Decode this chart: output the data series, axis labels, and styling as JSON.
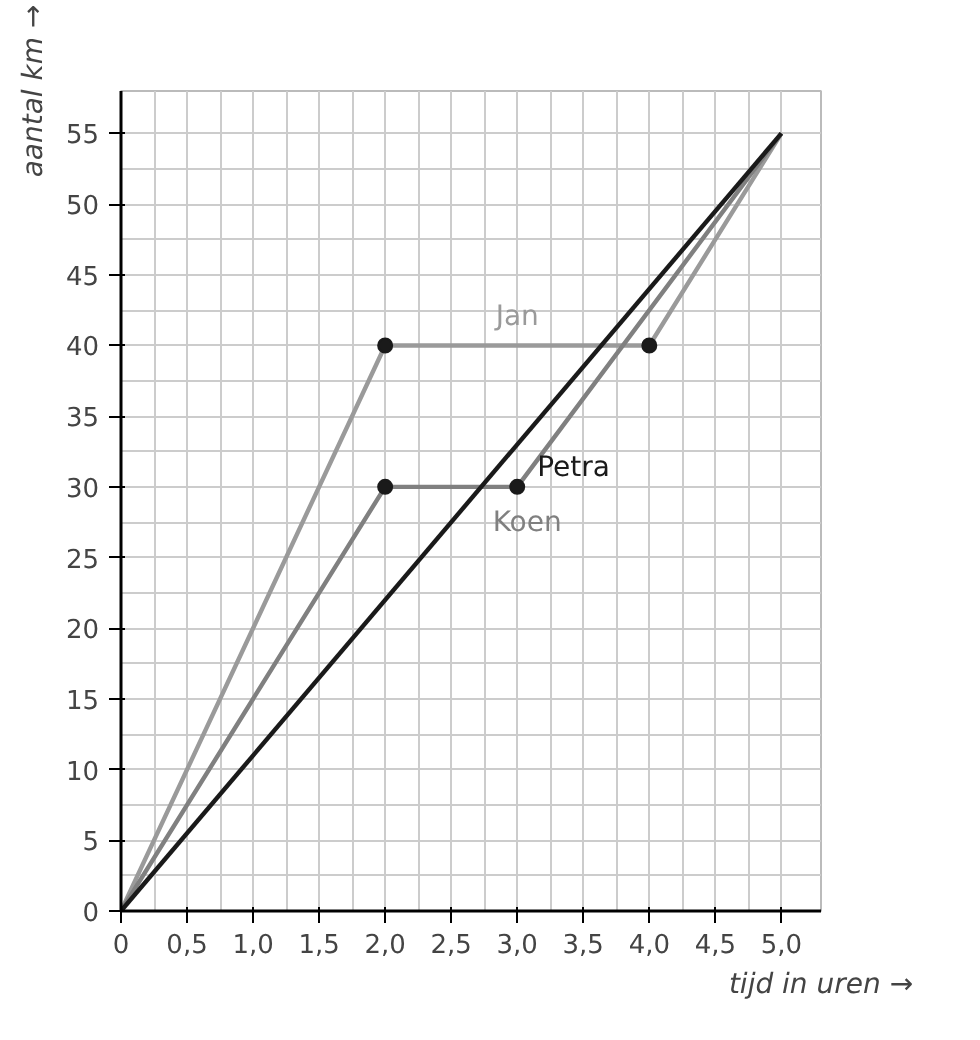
{
  "chart_data": {
    "type": "line",
    "xlabel": "tijd in uren →",
    "ylabel": "aantal km →",
    "xlim": [
      0,
      5.3
    ],
    "ylim": [
      0,
      58
    ],
    "xticks": [
      0,
      {
        "value": 0.5,
        "label": "0,5"
      },
      {
        "value": 1,
        "label": "1,0"
      },
      {
        "value": 1.5,
        "label": "1,5"
      },
      {
        "value": 2,
        "label": "2,0"
      },
      {
        "value": 2.5,
        "label": "2,5"
      },
      {
        "value": 3,
        "label": "3,0"
      },
      {
        "value": 3.5,
        "label": "3,5"
      },
      {
        "value": 4,
        "label": "4,0"
      },
      {
        "value": 4.5,
        "label": "4,5"
      },
      {
        "value": 5,
        "label": "5,0"
      }
    ],
    "yticks": [
      0,
      5,
      10,
      15,
      20,
      25,
      30,
      35,
      40,
      45,
      50,
      55
    ],
    "grid": true,
    "marker": "none",
    "series": [
      {
        "name": "Jan",
        "color": "#9a9a9a",
        "x": [
          0,
          2,
          4,
          5
        ],
        "values": [
          0,
          40,
          40,
          55
        ]
      },
      {
        "name": "Koen",
        "color": "#808080",
        "x": [
          0,
          2,
          3,
          5
        ],
        "values": [
          0,
          30,
          30,
          55
        ]
      },
      {
        "name": "Petra",
        "color": "#1a1a1a",
        "x": [
          0,
          5
        ],
        "values": [
          0,
          55
        ]
      },
      {
        "type": "scatter",
        "color": "#1a1a1a",
        "marker": "circle",
        "x": [
          2,
          4,
          2,
          3
        ],
        "values": [
          40,
          40,
          30,
          30
        ]
      }
    ]
  }
}
